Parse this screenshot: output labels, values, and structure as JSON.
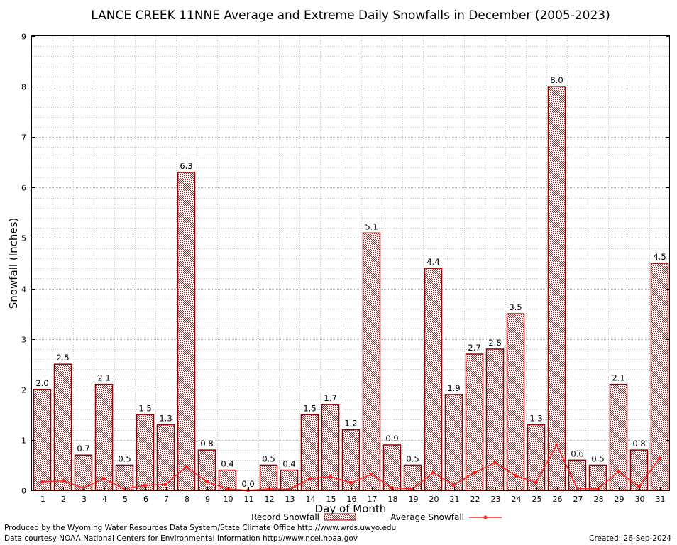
{
  "chart_data": {
    "type": "bar",
    "title": "LANCE CREEK 11NNE Average and Extreme Daily Snowfalls in December (2005-2023)",
    "xlabel": "Day of Month",
    "ylabel": "Snowfall (Inches)",
    "ylim": [
      0,
      9
    ],
    "yticks": [
      "0",
      "1",
      "2",
      "3",
      "4",
      "5",
      "6",
      "7",
      "8",
      "9"
    ],
    "grid": true,
    "legend_position": "bottom",
    "categories": [
      "1",
      "2",
      "3",
      "4",
      "5",
      "6",
      "7",
      "8",
      "9",
      "10",
      "11",
      "12",
      "13",
      "14",
      "15",
      "16",
      "17",
      "18",
      "19",
      "20",
      "21",
      "22",
      "23",
      "24",
      "25",
      "26",
      "27",
      "28",
      "29",
      "30",
      "31"
    ],
    "series": [
      {
        "name": "Record Snowfall",
        "type": "bar",
        "values": [
          2.0,
          2.5,
          0.7,
          2.1,
          0.5,
          1.5,
          1.3,
          6.3,
          0.8,
          0.4,
          0.0,
          0.5,
          0.4,
          1.5,
          1.7,
          1.2,
          5.1,
          0.9,
          0.5,
          4.4,
          1.9,
          2.7,
          2.8,
          3.5,
          1.3,
          8.0,
          0.6,
          0.5,
          2.1,
          0.8,
          4.5
        ],
        "labels": [
          "2.0",
          "2.5",
          "0.7",
          "2.1",
          "0.5",
          "1.5",
          "1.3",
          "6.3",
          "0.8",
          "0.4",
          "0.0",
          "0.5",
          "0.4",
          "1.5",
          "1.7",
          "1.2",
          "5.1",
          "0.9",
          "0.5",
          "4.4",
          "1.9",
          "2.7",
          "2.8",
          "3.5",
          "1.3",
          "8.0",
          "0.6",
          "0.5",
          "2.1",
          "0.8",
          "4.5"
        ],
        "color": "#8b0000"
      },
      {
        "name": "Average Snowfall",
        "type": "line",
        "values": [
          0.17,
          0.19,
          0.05,
          0.23,
          0.03,
          0.1,
          0.12,
          0.47,
          0.17,
          0.03,
          0.0,
          0.03,
          0.02,
          0.23,
          0.27,
          0.15,
          0.32,
          0.05,
          0.03,
          0.35,
          0.11,
          0.35,
          0.55,
          0.29,
          0.16,
          0.9,
          0.04,
          0.03,
          0.37,
          0.08,
          0.64
        ],
        "color": "#ff2020"
      }
    ]
  },
  "footer": {
    "produced_by": "Produced by the Wyoming Water Resources Data System/State Climate Office http://www.wrds.uwyo.edu",
    "data_courtesy": "Data courtesy NOAA National Centers for Environmental Information http://www.ncei.noaa.gov",
    "created": "Created:  26-Sep-2024"
  }
}
